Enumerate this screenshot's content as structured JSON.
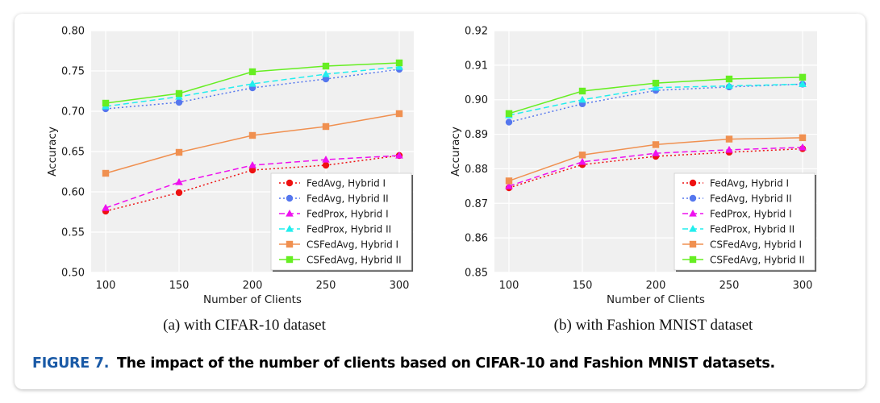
{
  "figure_caption": {
    "label": "FIGURE 7.",
    "text": "The impact of the number of clients based on CIFAR-10 and Fashion MNIST datasets."
  },
  "chart_data": [
    {
      "type": "line",
      "subcaption": "(a)  with CIFAR-10 dataset",
      "xlabel": "Number of Clients",
      "ylabel": "Accuracy",
      "x": [
        100,
        150,
        200,
        250,
        300
      ],
      "ylim": [
        0.5,
        0.8
      ],
      "yticks": [
        "0.50",
        "0.55",
        "0.60",
        "0.65",
        "0.70",
        "0.75",
        "0.80"
      ],
      "xticks": [
        "100",
        "150",
        "200",
        "250",
        "300"
      ],
      "grid": true,
      "legend_position": "lower-right",
      "series": [
        {
          "name": "FedAvg, Hybrid I",
          "values": [
            0.576,
            0.599,
            0.627,
            0.633,
            0.645
          ],
          "color": "#ee1111",
          "marker": "circle",
          "dash": "2,3"
        },
        {
          "name": "FedAvg, Hybrid II",
          "values": [
            0.703,
            0.711,
            0.729,
            0.74,
            0.752
          ],
          "color": "#5577ee",
          "marker": "circle",
          "dash": "2,3"
        },
        {
          "name": "FedProx, Hybrid I",
          "values": [
            0.58,
            0.612,
            0.633,
            0.64,
            0.645
          ],
          "color": "#ee11ee",
          "marker": "triangle",
          "dash": "7,4"
        },
        {
          "name": "FedProx, Hybrid II",
          "values": [
            0.706,
            0.718,
            0.734,
            0.746,
            0.755
          ],
          "color": "#22eeee",
          "marker": "triangle",
          "dash": "7,4"
        },
        {
          "name": "CSFedAvg, Hybrid I",
          "values": [
            0.623,
            0.649,
            0.67,
            0.681,
            0.697
          ],
          "color": "#f09050",
          "marker": "square",
          "dash": ""
        },
        {
          "name": "CSFedAvg, Hybrid II",
          "values": [
            0.71,
            0.722,
            0.749,
            0.756,
            0.76
          ],
          "color": "#66ee22",
          "marker": "square",
          "dash": ""
        }
      ]
    },
    {
      "type": "line",
      "subcaption": "(b)  with Fashion MNIST dataset",
      "xlabel": "Number of Clients",
      "ylabel": "Accuracy",
      "x": [
        100,
        150,
        200,
        250,
        300
      ],
      "ylim": [
        0.85,
        0.92
      ],
      "yticks": [
        "0.85",
        "0.86",
        "0.87",
        "0.88",
        "0.89",
        "0.90",
        "0.91",
        "0.92"
      ],
      "xticks": [
        "100",
        "150",
        "200",
        "250",
        "300"
      ],
      "grid": true,
      "legend_position": "lower-right",
      "series": [
        {
          "name": "FedAvg, Hybrid I",
          "values": [
            0.8745,
            0.8812,
            0.8836,
            0.8848,
            0.8858
          ],
          "color": "#ee1111",
          "marker": "circle",
          "dash": "2,3"
        },
        {
          "name": "FedAvg, Hybrid II",
          "values": [
            0.8935,
            0.8988,
            0.9027,
            0.9037,
            0.9045
          ],
          "color": "#5577ee",
          "marker": "circle",
          "dash": "2,3"
        },
        {
          "name": "FedProx, Hybrid I",
          "values": [
            0.875,
            0.882,
            0.8845,
            0.8855,
            0.8862
          ],
          "color": "#ee11ee",
          "marker": "triangle",
          "dash": "7,4"
        },
        {
          "name": "FedProx, Hybrid II",
          "values": [
            0.8955,
            0.9,
            0.9035,
            0.904,
            0.9045
          ],
          "color": "#22eeee",
          "marker": "triangle",
          "dash": "7,4"
        },
        {
          "name": "CSFedAvg, Hybrid I",
          "values": [
            0.8765,
            0.884,
            0.887,
            0.8886,
            0.889
          ],
          "color": "#f09050",
          "marker": "square",
          "dash": ""
        },
        {
          "name": "CSFedAvg, Hybrid II",
          "values": [
            0.896,
            0.9025,
            0.9048,
            0.906,
            0.9065
          ],
          "color": "#66ee22",
          "marker": "square",
          "dash": ""
        }
      ]
    }
  ]
}
